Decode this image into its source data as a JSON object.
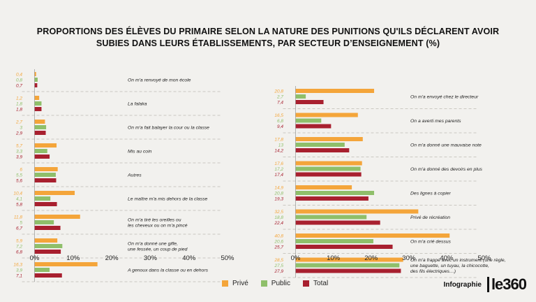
{
  "title_line1": "PROPORTIONS DES ÉLÈVES DU PRIMAIRE SELON LA NATURE DES PUNITIONS QU'ILS DÉCLARENT AVOIR",
  "title_line2": "SUBIES DANS LEURS ÉTABLISSEMENTS, PAR SECTEUR D’ENSEIGNEMENT (%)",
  "legend": [
    {
      "label": "Privé",
      "color": "#f4a53a"
    },
    {
      "label": "Public",
      "color": "#8fbf6a"
    },
    {
      "label": "Total",
      "color": "#a8202f"
    }
  ],
  "brand": {
    "text": "Infographie",
    "logo": "le360"
  },
  "chart_data": [
    {
      "type": "bar",
      "orientation": "horizontal",
      "xlim": [
        0,
        50
      ],
      "ticks": [
        "0%",
        "10%",
        "20%",
        "30%",
        "40%",
        "50%"
      ],
      "series_names": [
        "Privé",
        "Public",
        "Total"
      ],
      "categories": [
        {
          "label": [
            "On m'a renvoyé de mon école"
          ],
          "values": [
            0.4,
            0.8,
            0.7
          ],
          "labels": [
            "0,4",
            "0,8",
            "0,7"
          ]
        },
        {
          "label": [
            "La falaka"
          ],
          "values": [
            1.2,
            1.8,
            1.8
          ],
          "labels": [
            "1,2",
            "1,8",
            "1,8"
          ]
        },
        {
          "label": [
            "On m'a fait balayer la cour ou la classe"
          ],
          "values": [
            2.7,
            3,
            2.9
          ],
          "labels": [
            "2,7",
            "3",
            "2,9"
          ]
        },
        {
          "label": [
            "Mis au coin"
          ],
          "values": [
            5.7,
            3.3,
            3.9
          ],
          "labels": [
            "5,7",
            "3,3",
            "3,9"
          ]
        },
        {
          "label": [
            "Autres"
          ],
          "values": [
            6,
            5.5,
            5.6
          ],
          "labels": [
            "6",
            "5,5",
            "5,6"
          ]
        },
        {
          "label": [
            "Le maître m'a mis dehors de la classe"
          ],
          "values": [
            10.4,
            4.1,
            5.8
          ],
          "labels": [
            "10,4",
            "4,1",
            "5,8"
          ]
        },
        {
          "label": [
            "On m'a tiré les oreilles ou",
            "les cheveux ou on m'a pincé"
          ],
          "values": [
            11.8,
            5,
            6.7
          ],
          "labels": [
            "11,8",
            "5",
            "6,7"
          ]
        },
        {
          "label": [
            "On m'a donné une gifle,",
            "une fessée, un coup de pied"
          ],
          "values": [
            5.9,
            7.2,
            6.8
          ],
          "labels": [
            "5,9",
            "7,2",
            "6,8"
          ]
        },
        {
          "label": [
            "A genoux dans la classe ou en dehors"
          ],
          "values": [
            16.3,
            3.9,
            7.1
          ],
          "labels": [
            "16,3",
            "3,9",
            "7,1"
          ]
        }
      ]
    },
    {
      "type": "bar",
      "orientation": "horizontal",
      "xlim": [
        0,
        50
      ],
      "ticks": [
        "0%",
        "10%",
        "20%",
        "30%",
        "40%",
        "50%"
      ],
      "series_names": [
        "Privé",
        "Public",
        "Total"
      ],
      "categories": [
        {
          "label": [
            "On m'a envoyé chez le directeur"
          ],
          "values": [
            20.8,
            2.7,
            7.4
          ],
          "labels": [
            "20,8",
            "2,7",
            "7,4"
          ]
        },
        {
          "label": [
            "On a averti mes parents"
          ],
          "values": [
            16.5,
            6.8,
            9.4
          ],
          "labels": [
            "16,5",
            "6,8",
            "9,4"
          ]
        },
        {
          "label": [
            "On m'a donné une mauvaise note"
          ],
          "values": [
            17.8,
            13,
            14.2
          ],
          "labels": [
            "17,8",
            "13",
            "14,2"
          ]
        },
        {
          "label": [
            "On m'a donné des devoirs en plus"
          ],
          "values": [
            17.6,
            17.2,
            17.4
          ],
          "labels": [
            "17,6",
            "17,2",
            "17,4"
          ]
        },
        {
          "label": [
            "Des lignes à copier"
          ],
          "values": [
            14.9,
            20.8,
            19.3
          ],
          "labels": [
            "14,9",
            "20,8",
            "19,3"
          ]
        },
        {
          "label": [
            "Privé de récréation"
          ],
          "values": [
            32.5,
            18.8,
            22.4
          ],
          "labels": [
            "32,5",
            "18,8",
            "22,4"
          ]
        },
        {
          "label": [
            "On m'a crié dessus"
          ],
          "values": [
            40.8,
            20.6,
            25.7
          ],
          "labels": [
            "40,8",
            "20,6",
            "25,7"
          ]
        },
        {
          "label": [
            "On m'a frappé avec un instrument (une règle,",
            "une baguette, un tuyau, la chicocotte,",
            "des fils électriques…)"
          ],
          "values": [
            28.5,
            27.5,
            27.9
          ],
          "labels": [
            "28,5",
            "27,5",
            "27,9"
          ]
        }
      ]
    }
  ]
}
